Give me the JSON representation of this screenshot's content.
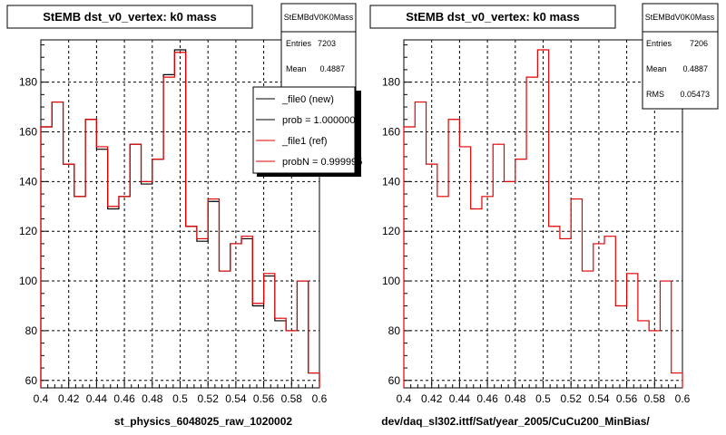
{
  "colors": {
    "new": "#000000",
    "ref": "#e00000",
    "grid": "#000000",
    "shadow": "#000000"
  },
  "chart_data": [
    {
      "type": "line",
      "title": "StEMB dst_v0_vertex: k0 mass",
      "xlabel": "st_physics_6048025_raw_1020002",
      "ylabel": "",
      "xlim": [
        0.4,
        0.6
      ],
      "ylim": [
        57,
        197
      ],
      "xticks": [
        "0.4",
        "0.42",
        "0.44",
        "0.46",
        "0.48",
        "0.5",
        "0.52",
        "0.54",
        "0.56",
        "0.58",
        "0.6"
      ],
      "yticks": [
        "60",
        "80",
        "100",
        "120",
        "140",
        "160",
        "180"
      ],
      "grid": true,
      "bin_edges": [
        0.4,
        0.408,
        0.416,
        0.424,
        0.432,
        0.44,
        0.448,
        0.456,
        0.464,
        0.472,
        0.48,
        0.488,
        0.496,
        0.504,
        0.512,
        0.52,
        0.528,
        0.536,
        0.544,
        0.552,
        0.56,
        0.568,
        0.576,
        0.584,
        0.592,
        0.6
      ],
      "series": [
        {
          "name": "_file0 (new)",
          "color": "#000000",
          "values": [
            162,
            172,
            147,
            134,
            165,
            153,
            129,
            134,
            155,
            139,
            149,
            183,
            193,
            122,
            116,
            132,
            104,
            115,
            117,
            90,
            102,
            84,
            80,
            100,
            63
          ]
        },
        {
          "name": "_file1 (ref)",
          "color": "#e00000",
          "values": [
            162,
            172,
            147,
            134,
            165,
            154,
            130,
            134,
            155,
            140,
            149,
            182,
            192,
            122,
            117,
            133,
            104,
            115,
            118,
            91,
            103,
            85,
            80,
            100,
            63
          ]
        }
      ],
      "stats": {
        "name": "StEMBdV0K0Mass",
        "rows": [
          {
            "label": "Entries",
            "value": "7203"
          },
          {
            "label": "Mean",
            "value": "0.4887"
          }
        ]
      },
      "legend": {
        "placement": "top-right",
        "entries": [
          "_file0 (new)",
          "prob = 1.000000",
          "_file1 (ref)",
          "probN = 0.999995"
        ]
      }
    },
    {
      "type": "line",
      "title": "StEMB dst_v0_vertex: k0 mass",
      "xlabel": "dev/daq_sl302.ittf/Sat/year_2005/CuCu200_MinBias/",
      "ylabel": "",
      "xlim": [
        0.4,
        0.6
      ],
      "ylim": [
        57,
        197
      ],
      "xticks": [
        "0.4",
        "0.42",
        "0.44",
        "0.46",
        "0.48",
        "0.5",
        "0.52",
        "0.54",
        "0.56",
        "0.58",
        "0.6"
      ],
      "yticks": [
        "60",
        "80",
        "100",
        "120",
        "140",
        "160",
        "180"
      ],
      "grid": true,
      "bin_edges": [
        0.4,
        0.408,
        0.416,
        0.424,
        0.432,
        0.44,
        0.448,
        0.456,
        0.464,
        0.472,
        0.48,
        0.488,
        0.496,
        0.504,
        0.512,
        0.52,
        0.528,
        0.536,
        0.544,
        0.552,
        0.56,
        0.568,
        0.576,
        0.584,
        0.592,
        0.6
      ],
      "series": [
        {
          "name": "",
          "color": "#e00000",
          "values": [
            162,
            172,
            147,
            134,
            165,
            154,
            129,
            134,
            155,
            140,
            149,
            182,
            193,
            122,
            117,
            133,
            104,
            115,
            118,
            90,
            103,
            84,
            80,
            100,
            63
          ]
        }
      ],
      "stats": {
        "name": "StEMBdV0K0Mass",
        "rows": [
          {
            "label": "Entries",
            "value": "7206"
          },
          {
            "label": "Mean",
            "value": "0.4887"
          },
          {
            "label": "RMS",
            "value": "0.05473"
          }
        ]
      }
    }
  ]
}
